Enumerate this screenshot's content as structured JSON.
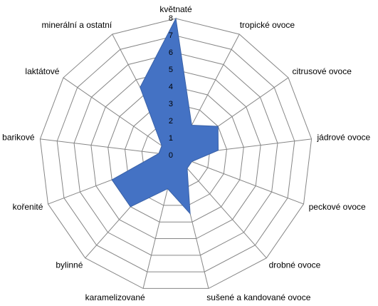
{
  "chart_data": {
    "type": "radar",
    "categories": [
      "květnaté",
      "tropické ovoce",
      "citrusové ovoce",
      "jádrové ovoce",
      "peckové ovoce",
      "drobné ovoce",
      "sušené a kandované ovoce",
      "karamelizované",
      "bylinné",
      "kořenité",
      "barikové",
      "laktátové",
      "minerální a ostatní"
    ],
    "values": [
      8,
      2,
      3,
      2.5,
      1,
      1,
      3.5,
      2,
      4,
      4,
      1,
      1,
      4.5
    ],
    "color": "#4472c4",
    "ylim": [
      0,
      8
    ],
    "yticks": [
      0,
      1,
      2,
      3,
      4,
      5,
      6,
      7,
      8
    ],
    "grid": true
  }
}
